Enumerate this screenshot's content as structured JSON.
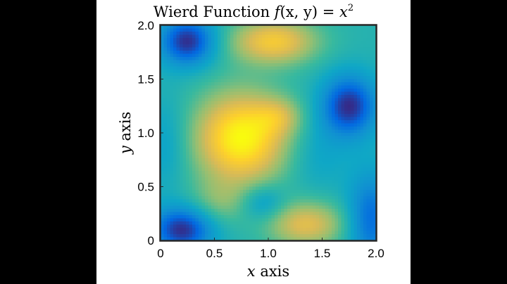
{
  "chart_data": {
    "type": "heatmap",
    "title": {
      "prefix": "Wierd Function ",
      "math_f": "f",
      "math_args": "(x, y) = ",
      "math_base": "x",
      "math_exp": "2"
    },
    "xlabel": {
      "var": "x",
      "text": " axis"
    },
    "ylabel": {
      "var": "y",
      "text": " axis"
    },
    "xlim": [
      0,
      2
    ],
    "ylim": [
      0,
      2
    ],
    "xticks": [
      "0",
      "0.5",
      "1.0",
      "1.5",
      "2.0"
    ],
    "yticks": [
      "0",
      "0.5",
      "1.0",
      "1.5",
      "2.0"
    ],
    "xtick_values": [
      0,
      0.5,
      1.0,
      1.5,
      2.0
    ],
    "ytick_values": [
      0,
      0.5,
      1.0,
      1.5,
      2.0
    ],
    "colormap": "parula",
    "colormap_stops": [
      "#352a87",
      "#0268e1",
      "#108ed2",
      "#0fa7c6",
      "#38b99e",
      "#92bf73",
      "#d9ba56",
      "#fcce2e",
      "#f9fb0e"
    ],
    "colorbar": false,
    "grid": false,
    "features": [
      {
        "x": 0.25,
        "y": 1.85,
        "sx": 0.18,
        "sy": 0.16,
        "amp": -1.0
      },
      {
        "x": 1.05,
        "y": 1.85,
        "sx": 0.28,
        "sy": 0.15,
        "amp": 0.9
      },
      {
        "x": 1.75,
        "y": 1.25,
        "sx": 0.18,
        "sy": 0.2,
        "amp": -1.0
      },
      {
        "x": 0.75,
        "y": 0.95,
        "sx": 0.3,
        "sy": 0.3,
        "amp": 1.25
      },
      {
        "x": 1.1,
        "y": 1.15,
        "sx": 0.15,
        "sy": 0.12,
        "amp": 0.4
      },
      {
        "x": 0.2,
        "y": 0.1,
        "sx": 0.2,
        "sy": 0.15,
        "amp": -1.0
      },
      {
        "x": 1.35,
        "y": 0.15,
        "sx": 0.25,
        "sy": 0.15,
        "amp": 0.75
      },
      {
        "x": 1.95,
        "y": 0.2,
        "sx": 0.15,
        "sy": 0.3,
        "amp": -0.7
      },
      {
        "x": 0.95,
        "y": 0.35,
        "sx": 0.15,
        "sy": 0.12,
        "amp": -0.4
      },
      {
        "x": 0.05,
        "y": 0.9,
        "sx": 0.15,
        "sy": 0.3,
        "amp": -0.25
      },
      {
        "x": 0.55,
        "y": 0.35,
        "sx": 0.2,
        "sy": 0.15,
        "amp": 0.3
      },
      {
        "x": 1.45,
        "y": 0.8,
        "sx": 0.2,
        "sy": 0.25,
        "amp": -0.2
      }
    ],
    "base_value": 0.5
  }
}
